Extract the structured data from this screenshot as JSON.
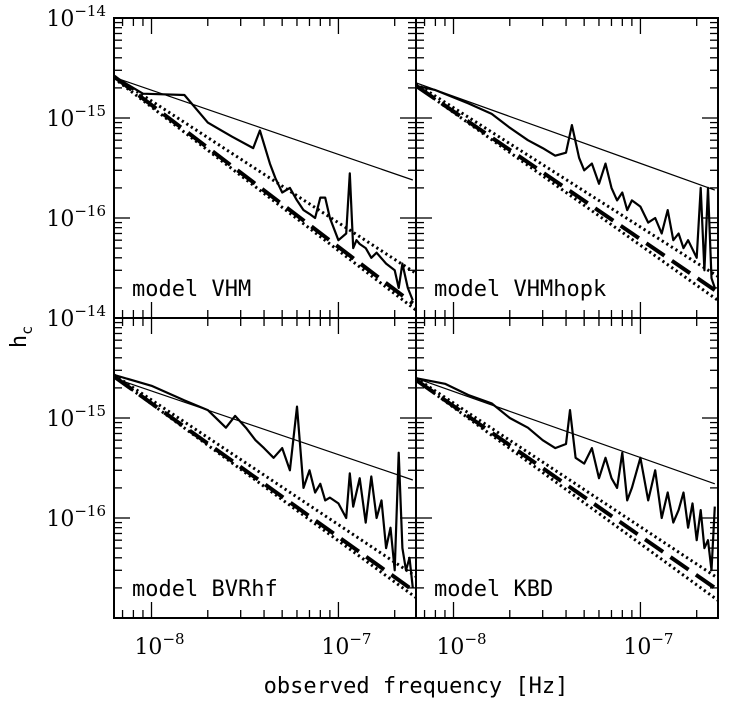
{
  "chart_data": {
    "type": "line",
    "layout": "2x2 panels sharing axes",
    "xlabel": "observed frequency [Hz]",
    "ylabel": "h",
    "ylabel_subscript": "c",
    "xscale": "log",
    "yscale": "log",
    "xlim": [
      6.3e-09,
      2.6e-07
    ],
    "ylim": [
      1e-17,
      1e-14
    ],
    "x_tick_labels": [
      {
        "base": "10",
        "exp": "−8",
        "value": 1e-08
      },
      {
        "base": "10",
        "exp": "−7",
        "value": 1e-07
      }
    ],
    "y_tick_labels": [
      {
        "base": "10",
        "exp": "−14",
        "value": 1e-14
      },
      {
        "base": "10",
        "exp": "−15",
        "value": 1e-15
      },
      {
        "base": "10",
        "exp": "−16",
        "value": 1e-16
      }
    ],
    "panels": [
      {
        "label": "model VHM",
        "series": [
          {
            "style": "thin-solid",
            "x": [
              6.3e-09,
              2.5e-07
            ],
            "y": [
              2.55e-15,
              2.4e-16
            ]
          },
          {
            "style": "thick-solid",
            "x": [
              6.3e-09,
              9e-09,
              1.5e-08,
              2e-08,
              2.7e-08,
              3.5e-08,
              3.8e-08,
              4.3e-08,
              4.6e-08,
              5e-08,
              5.5e-08,
              6e-08,
              6.5e-08,
              7e-08,
              7.5e-08,
              8e-08,
              8.5e-08,
              9e-08,
              1e-07,
              1.1e-07,
              1.15e-07,
              1.2e-07,
              1.25e-07,
              1.3e-07,
              1.4e-07,
              1.5e-07,
              1.6e-07,
              1.8e-07,
              2e-07,
              2.1e-07,
              2.2e-07,
              2.35e-07,
              2.5e-07
            ],
            "y": [
              2.6e-15,
              1.75e-15,
              1.7e-15,
              9e-16,
              6.5e-16,
              5e-16,
              7.5e-16,
              3.5e-16,
              2.5e-16,
              1.8e-16,
              2e-16,
              1.5e-16,
              1.2e-16,
              1.1e-16,
              1e-16,
              1.6e-16,
              1.6e-16,
              1e-16,
              6e-17,
              7e-17,
              2.8e-16,
              5e-17,
              6e-17,
              5.5e-17,
              5e-17,
              4e-17,
              4.5e-17,
              3.5e-17,
              3e-17,
              2e-17,
              3.5e-17,
              2e-17,
              1.5e-17
            ]
          },
          {
            "style": "thick-dashed",
            "x": [
              6.3e-09,
              2.5e-07
            ],
            "y": [
              2.6e-15,
              1.4e-17
            ]
          },
          {
            "style": "dotted-upper",
            "x": [
              6.3e-09,
              2.6e-07
            ],
            "y": [
              2.6e-15,
              2.8e-17
            ]
          },
          {
            "style": "dotted-lower",
            "x": [
              6.3e-09,
              2.6e-07
            ],
            "y": [
              2.5e-15,
              1.2e-17
            ]
          }
        ]
      },
      {
        "label": "model VHMhopk",
        "series": [
          {
            "style": "thin-solid",
            "x": [
              6.3e-09,
              2.5e-07
            ],
            "y": [
              2.25e-15,
              1.9e-16
            ]
          },
          {
            "style": "thick-solid",
            "x": [
              6.3e-09,
              8e-09,
              1.2e-08,
              1.6e-08,
              2e-08,
              2.5e-08,
              3e-08,
              3.5e-08,
              4e-08,
              4.3e-08,
              4.7e-08,
              5e-08,
              5.5e-08,
              6e-08,
              6.5e-08,
              7e-08,
              7.5e-08,
              8e-08,
              8.5e-08,
              9e-08,
              1e-07,
              1.1e-07,
              1.2e-07,
              1.3e-07,
              1.4e-07,
              1.5e-07,
              1.6e-07,
              1.7e-07,
              1.8e-07,
              2e-07,
              2.1e-07,
              2.2e-07,
              2.3e-07,
              2.4e-07,
              2.5e-07
            ],
            "y": [
              2.1e-15,
              1.9e-15,
              1.4e-15,
              1.1e-15,
              8e-16,
              6e-16,
              5e-16,
              4.2e-16,
              4.5e-16,
              8.5e-16,
              4e-16,
              3e-16,
              3.5e-16,
              2.2e-16,
              3.5e-16,
              2e-16,
              1.5e-16,
              1.8e-16,
              1.2e-16,
              1.5e-16,
              1.3e-16,
              9e-17,
              1e-16,
              7e-17,
              1.2e-16,
              6e-17,
              7e-17,
              5e-17,
              6e-17,
              4e-17,
              2e-16,
              3e-17,
              2e-16,
              2.5e-17,
              2e-17
            ]
          },
          {
            "style": "thick-dashed",
            "x": [
              6.3e-09,
              2.5e-07
            ],
            "y": [
              2.1e-15,
              1.9e-17
            ]
          },
          {
            "style": "dotted-upper",
            "x": [
              6.3e-09,
              2.6e-07
            ],
            "y": [
              2.2e-15,
              2.6e-17
            ]
          },
          {
            "style": "dotted-lower",
            "x": [
              6.3e-09,
              2.6e-07
            ],
            "y": [
              2.1e-15,
              1.5e-17
            ]
          }
        ]
      },
      {
        "label": "model BVRhf",
        "series": [
          {
            "style": "thin-solid",
            "x": [
              6.3e-09,
              2.5e-07
            ],
            "y": [
              2.5e-15,
              2.4e-16
            ]
          },
          {
            "style": "thick-solid",
            "x": [
              6.3e-09,
              1e-08,
              1.5e-08,
              2e-08,
              2.5e-08,
              2.8e-08,
              3.2e-08,
              3.6e-08,
              4e-08,
              4.5e-08,
              5e-08,
              5.5e-08,
              6e-08,
              6.5e-08,
              7e-08,
              7.5e-08,
              8e-08,
              8.5e-08,
              9e-08,
              1e-07,
              1.1e-07,
              1.15e-07,
              1.2e-07,
              1.3e-07,
              1.4e-07,
              1.5e-07,
              1.6e-07,
              1.7e-07,
              1.8e-07,
              1.9e-07,
              2e-07,
              2.1e-07,
              2.2e-07,
              2.3e-07,
              2.4e-07,
              2.5e-07
            ],
            "y": [
              2.7e-15,
              2.1e-15,
              1.5e-15,
              1.2e-15,
              8e-16,
              1.05e-15,
              8e-16,
              6e-16,
              5e-16,
              4e-16,
              5e-16,
              3e-16,
              1.3e-15,
              2e-16,
              3e-16,
              1.8e-16,
              2.2e-16,
              1.5e-16,
              1.6e-16,
              1.4e-16,
              1e-16,
              2.8e-16,
              1.3e-16,
              2.5e-16,
              9e-17,
              2.6e-16,
              1e-16,
              1.5e-16,
              5e-17,
              8e-17,
              3e-17,
              4.5e-16,
              5e-17,
              3e-17,
              4e-17,
              2e-17
            ]
          },
          {
            "style": "thick-dashed",
            "x": [
              6.3e-09,
              2.5e-07
            ],
            "y": [
              2.6e-15,
              1.9e-17
            ]
          },
          {
            "style": "dotted-upper",
            "x": [
              6.3e-09,
              2.6e-07
            ],
            "y": [
              2.7e-15,
              2.6e-17
            ]
          },
          {
            "style": "dotted-lower",
            "x": [
              6.3e-09,
              2.6e-07
            ],
            "y": [
              2.6e-15,
              1.6e-17
            ]
          }
        ]
      },
      {
        "label": "model KBD",
        "series": [
          {
            "style": "thin-solid",
            "x": [
              6.3e-09,
              2.5e-07
            ],
            "y": [
              2.5e-15,
              2.2e-16
            ]
          },
          {
            "style": "thick-solid",
            "x": [
              6.3e-09,
              9e-09,
              1.2e-08,
              1.6e-08,
              2e-08,
              2.5e-08,
              3e-08,
              3.5e-08,
              4e-08,
              4.2e-08,
              4.5e-08,
              5e-08,
              5.5e-08,
              6e-08,
              6.5e-08,
              7e-08,
              7.5e-08,
              8e-08,
              8.5e-08,
              9e-08,
              1e-07,
              1.1e-07,
              1.2e-07,
              1.3e-07,
              1.4e-07,
              1.5e-07,
              1.6e-07,
              1.7e-07,
              1.8e-07,
              1.9e-07,
              2e-07,
              2.1e-07,
              2.2e-07,
              2.3e-07,
              2.4e-07,
              2.5e-07
            ],
            "y": [
              2.5e-15,
              2.2e-15,
              1.7e-15,
              1.4e-15,
              1e-15,
              8e-16,
              6e-16,
              5e-16,
              5.5e-16,
              1.2e-15,
              4e-16,
              3.5e-16,
              5e-16,
              2.5e-16,
              4e-16,
              2.5e-16,
              2e-16,
              4.5e-16,
              1.5e-16,
              2e-16,
              4e-16,
              1.5e-16,
              3e-16,
              1e-16,
              1.8e-16,
              9e-17,
              1.2e-16,
              1.8e-16,
              8e-17,
              1.4e-16,
              6e-17,
              1.2e-16,
              5e-17,
              6e-17,
              3e-17,
              1.3e-16
            ]
          },
          {
            "style": "thick-dashed",
            "x": [
              6.3e-09,
              2.5e-07
            ],
            "y": [
              2.4e-15,
              2e-17
            ]
          },
          {
            "style": "dotted-upper",
            "x": [
              6.3e-09,
              2.6e-07
            ],
            "y": [
              2.5e-15,
              2.5e-17
            ]
          },
          {
            "style": "dotted-lower",
            "x": [
              6.3e-09,
              2.6e-07
            ],
            "y": [
              2.4e-15,
              1.5e-17
            ]
          }
        ]
      }
    ]
  }
}
